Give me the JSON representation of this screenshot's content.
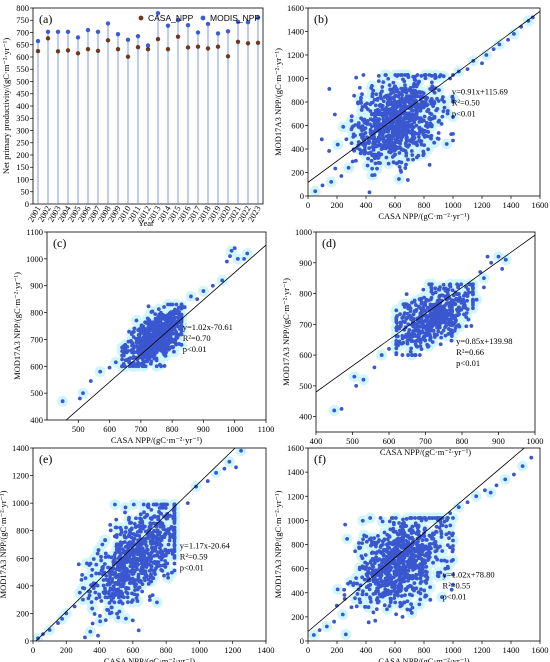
{
  "colors": {
    "casa": "#6b3a1f",
    "modis": "#3d5bd6",
    "stem": "#5a7fe0",
    "point": "#3b57cf",
    "halo": "#a8f0ff",
    "fitline": "#000000"
  },
  "chart_data": [
    {
      "id": "a",
      "panel_label": "(a)",
      "type": "line",
      "style": "stem",
      "xlabel": "Year",
      "ylabel": "Net primary productivity/(gC·m⁻²·yr⁻¹)",
      "ylim": [
        0,
        800
      ],
      "yticks": [
        0,
        50,
        100,
        150,
        200,
        250,
        300,
        350,
        400,
        450,
        500,
        550,
        600,
        650,
        700,
        750,
        800
      ],
      "legend": [
        "CASA_NPP",
        "MODIS_NPP"
      ],
      "legend_position": "top-right",
      "categories": [
        "2001",
        "2002",
        "2003",
        "2004",
        "2005",
        "2006",
        "2007",
        "2008",
        "2009",
        "2010",
        "2011",
        "2012",
        "2013",
        "2014",
        "2015",
        "2016",
        "2017",
        "2018",
        "2019",
        "2020",
        "2021",
        "2022",
        "2023"
      ],
      "series": [
        {
          "name": "CASA_NPP",
          "values": [
            624,
            676,
            623,
            627,
            615,
            632,
            625,
            668,
            632,
            601,
            640,
            632,
            673,
            632,
            683,
            639,
            642,
            635,
            642,
            603,
            662,
            656,
            658
          ]
        },
        {
          "name": "MODIS_NPP",
          "values": [
            665,
            703,
            703,
            703,
            680,
            710,
            703,
            737,
            693,
            670,
            685,
            647,
            779,
            728,
            750,
            730,
            700,
            735,
            696,
            705,
            743,
            742,
            760
          ]
        }
      ]
    },
    {
      "id": "b",
      "panel_label": "(b)",
      "type": "scatter",
      "xlabel": "CASA NPP/(gC·m⁻²·yr⁻¹)",
      "ylabel": "MOD17A3 NPP/(gC·m⁻²·yr⁻¹)",
      "xlim": [
        0,
        1600
      ],
      "ylim": [
        0,
        1600
      ],
      "xticks": [
        0,
        200,
        400,
        600,
        800,
        1000,
        1200,
        1400,
        1600
      ],
      "yticks": [
        0,
        200,
        400,
        600,
        800,
        1000,
        1200,
        1400,
        1600
      ],
      "fit": {
        "slope": 0.91,
        "intercept": 115.69
      },
      "equation": "y=0.91x+115.69",
      "r2": "R²=0.50",
      "p": "p<0.01",
      "cloud": {
        "cx": 620,
        "cy": 650,
        "sx": 150,
        "sy": 190,
        "rho": 0.35,
        "xmin": 0,
        "xmax": 1000,
        "ymin": 0,
        "ymax": 1030,
        "n": 900
      },
      "points": [
        [
          50,
          40
        ],
        [
          100,
          90
        ],
        [
          160,
          120
        ],
        [
          230,
          170
        ],
        [
          280,
          240
        ],
        [
          330,
          300
        ],
        [
          390,
          360
        ],
        [
          460,
          420
        ],
        [
          520,
          470
        ],
        [
          980,
          1000
        ],
        [
          1040,
          1060
        ],
        [
          1100,
          1080
        ],
        [
          1140,
          1150
        ],
        [
          1200,
          1130
        ],
        [
          1230,
          1200
        ],
        [
          1280,
          1250
        ],
        [
          1320,
          1290
        ],
        [
          1380,
          1330
        ],
        [
          1420,
          1380
        ],
        [
          1470,
          1440
        ],
        [
          1520,
          1490
        ],
        [
          1550,
          1520
        ]
      ]
    },
    {
      "id": "c",
      "panel_label": "(c)",
      "type": "scatter",
      "xlabel": "CASA NPP/(gC·m⁻²·yr⁻¹)",
      "ylabel": "MOD17A3 NPP/(gC·m⁻²·yr⁻¹)",
      "xlim": [
        400,
        1100
      ],
      "ylim": [
        400,
        1100
      ],
      "xticks": [
        500,
        600,
        700,
        800,
        900,
        1000,
        1100
      ],
      "yticks": [
        400,
        500,
        600,
        700,
        800,
        900,
        1000,
        1100
      ],
      "fit": {
        "slope": 1.02,
        "intercept": -70.61
      },
      "equation": "y=1.02x-70.61",
      "r2": "R²=0.70",
      "p": "p<0.01",
      "cloud": {
        "cx": 745,
        "cy": 705,
        "sx": 45,
        "sy": 50,
        "rho": 0.55,
        "xmin": 640,
        "xmax": 830,
        "ymin": 600,
        "ymax": 830,
        "n": 700
      },
      "points": [
        [
          450,
          470
        ],
        [
          505,
          480
        ],
        [
          515,
          500
        ],
        [
          540,
          545
        ],
        [
          570,
          580
        ],
        [
          600,
          595
        ],
        [
          620,
          615
        ],
        [
          640,
          640
        ],
        [
          820,
          800
        ],
        [
          840,
          820
        ],
        [
          860,
          860
        ],
        [
          880,
          850
        ],
        [
          900,
          880
        ],
        [
          930,
          900
        ],
        [
          960,
          920
        ],
        [
          975,
          990
        ],
        [
          990,
          1030
        ],
        [
          1000,
          1040
        ],
        [
          1010,
          1000
        ],
        [
          1030,
          1000
        ],
        [
          1040,
          1020
        ],
        [
          985,
          1010
        ]
      ]
    },
    {
      "id": "d",
      "panel_label": "(d)",
      "type": "scatter",
      "xlabel": "CASA NPP/(gC·m⁻²·yr⁻¹)",
      "ylabel": "MOD17A3 NPP/(gC·m⁻²·yr⁻¹)",
      "xlim": [
        400,
        1000
      ],
      "ylim": [
        350,
        1000
      ],
      "xticks": [
        400,
        500,
        600,
        700,
        800,
        900,
        1000
      ],
      "yticks": [
        400,
        500,
        600,
        700,
        800,
        900,
        1000
      ],
      "fit": {
        "slope": 0.85,
        "intercept": 139.98
      },
      "equation": "y=0.85x+139.98",
      "r2": "R²=0.66",
      "p": "p<0.01",
      "cloud": {
        "cx": 720,
        "cy": 720,
        "sx": 55,
        "sy": 55,
        "rho": 0.55,
        "xmin": 620,
        "xmax": 830,
        "ymin": 600,
        "ymax": 830,
        "n": 550
      },
      "points": [
        [
          450,
          420
        ],
        [
          470,
          425
        ],
        [
          505,
          530
        ],
        [
          510,
          500
        ],
        [
          530,
          520
        ],
        [
          560,
          560
        ],
        [
          580,
          600
        ],
        [
          600,
          620
        ],
        [
          830,
          830
        ],
        [
          850,
          870
        ],
        [
          860,
          850
        ],
        [
          880,
          900
        ],
        [
          900,
          920
        ],
        [
          910,
          880
        ],
        [
          920,
          910
        ],
        [
          870,
          920
        ],
        [
          840,
          780
        ],
        [
          860,
          820
        ]
      ]
    },
    {
      "id": "e",
      "panel_label": "(e)",
      "type": "scatter",
      "xlabel": "CASA NPP/(gC·m⁻²·yr⁻¹)",
      "ylabel": "MOD17A3 NPP/(gC·m⁻²·yr⁻¹)",
      "xlim": [
        0,
        1400
      ],
      "ylim": [
        0,
        1400
      ],
      "xticks": [
        0,
        200,
        400,
        600,
        800,
        1000,
        1200,
        1400
      ],
      "yticks": [
        0,
        200,
        400,
        600,
        800,
        1000,
        1200,
        1400
      ],
      "fit": {
        "slope": 1.17,
        "intercept": -20.64
      },
      "equation": "y=1.17x-20.64",
      "r2": "R²=0.59",
      "p": "p<0.01",
      "cloud": {
        "cx": 620,
        "cy": 600,
        "sx": 140,
        "sy": 200,
        "rho": 0.6,
        "xmin": 0,
        "xmax": 850,
        "ymin": 0,
        "ymax": 990,
        "n": 800
      },
      "points": [
        [
          30,
          20
        ],
        [
          60,
          50
        ],
        [
          100,
          80
        ],
        [
          150,
          130
        ],
        [
          200,
          200
        ],
        [
          250,
          250
        ],
        [
          300,
          300
        ],
        [
          930,
          1000
        ],
        [
          980,
          1120
        ],
        [
          1050,
          1160
        ],
        [
          1100,
          1220
        ],
        [
          1150,
          1250
        ],
        [
          1180,
          1300
        ],
        [
          1220,
          1260
        ],
        [
          1250,
          1380
        ]
      ]
    },
    {
      "id": "f",
      "panel_label": "(f)",
      "type": "scatter",
      "xlabel": "CASA NPP/(gC·m⁻²·yr⁻¹)",
      "ylabel": "MOD17A3 NPP/(gC·m⁻²·yr⁻¹)",
      "xlim": [
        0,
        1600
      ],
      "ylim": [
        0,
        1600
      ],
      "xticks": [
        0,
        200,
        400,
        600,
        800,
        1000,
        1200,
        1400,
        1600
      ],
      "yticks": [
        0,
        200,
        400,
        600,
        800,
        1000,
        1200,
        1400,
        1600
      ],
      "fit": {
        "slope": 1.02,
        "intercept": 78.8
      },
      "equation": "y=1.02x+78.80",
      "r2": "R²=0.55",
      "p": "p<0.01",
      "cloud": {
        "cx": 630,
        "cy": 660,
        "sx": 150,
        "sy": 200,
        "rho": 0.35,
        "xmin": 0,
        "xmax": 1000,
        "ymin": 0,
        "ymax": 1020,
        "n": 850
      },
      "points": [
        [
          40,
          50
        ],
        [
          80,
          90
        ],
        [
          130,
          120
        ],
        [
          180,
          160
        ],
        [
          240,
          220
        ],
        [
          300,
          280
        ],
        [
          360,
          320
        ],
        [
          980,
          1060
        ],
        [
          1040,
          1110
        ],
        [
          1100,
          1150
        ],
        [
          1160,
          1200
        ],
        [
          1220,
          1250
        ],
        [
          1260,
          1230
        ],
        [
          1300,
          1290
        ],
        [
          1360,
          1340
        ],
        [
          1420,
          1380
        ],
        [
          1480,
          1450
        ],
        [
          1540,
          1520
        ]
      ]
    }
  ]
}
